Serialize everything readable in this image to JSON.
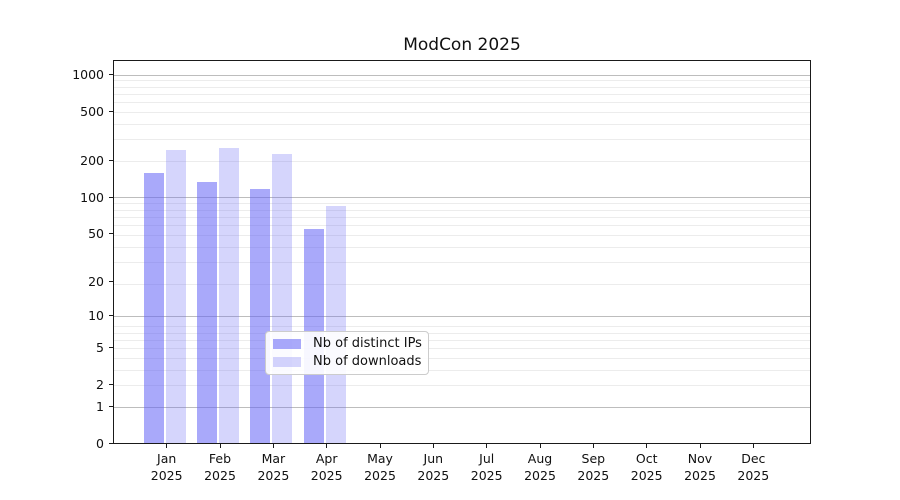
{
  "chart_data": {
    "type": "bar",
    "title": "ModCon 2025",
    "categories": [
      "Jan 2025",
      "Feb 2025",
      "Mar 2025",
      "Apr 2025",
      "May 2025",
      "Jun 2025",
      "Jul 2025",
      "Aug 2025",
      "Sep 2025",
      "Oct 2025",
      "Nov 2025",
      "Dec 2025"
    ],
    "series": [
      {
        "name": "Nb of distinct IPs",
        "color": "rgba(99,99,245,0.55)",
        "values": [
          155,
          131,
          116,
          54,
          null,
          null,
          null,
          null,
          null,
          null,
          null,
          null
        ]
      },
      {
        "name": "Nb of downloads",
        "color": "rgba(99,99,245,0.27)",
        "values": [
          243,
          250,
          222,
          84,
          null,
          null,
          null,
          null,
          null,
          null,
          null,
          null
        ]
      }
    ],
    "yscale": "log(1+y)",
    "y_ticks": [
      0,
      1,
      2,
      5,
      10,
      20,
      50,
      100,
      200,
      500,
      1000
    ],
    "ylim": [
      0,
      1300
    ],
    "xlabel": "",
    "ylabel": "",
    "grid": "horizontal",
    "legend_position": "inside-bottom-center-left"
  },
  "colors": {
    "bar_distinct_ips": "rgba(99,99,245,0.55)",
    "bar_downloads": "rgba(99,99,245,0.27)",
    "grid_major": "#bdbdbd",
    "grid_minor": "#ececec",
    "axis": "#1a1a1a",
    "legend_border": "#cccccc"
  }
}
